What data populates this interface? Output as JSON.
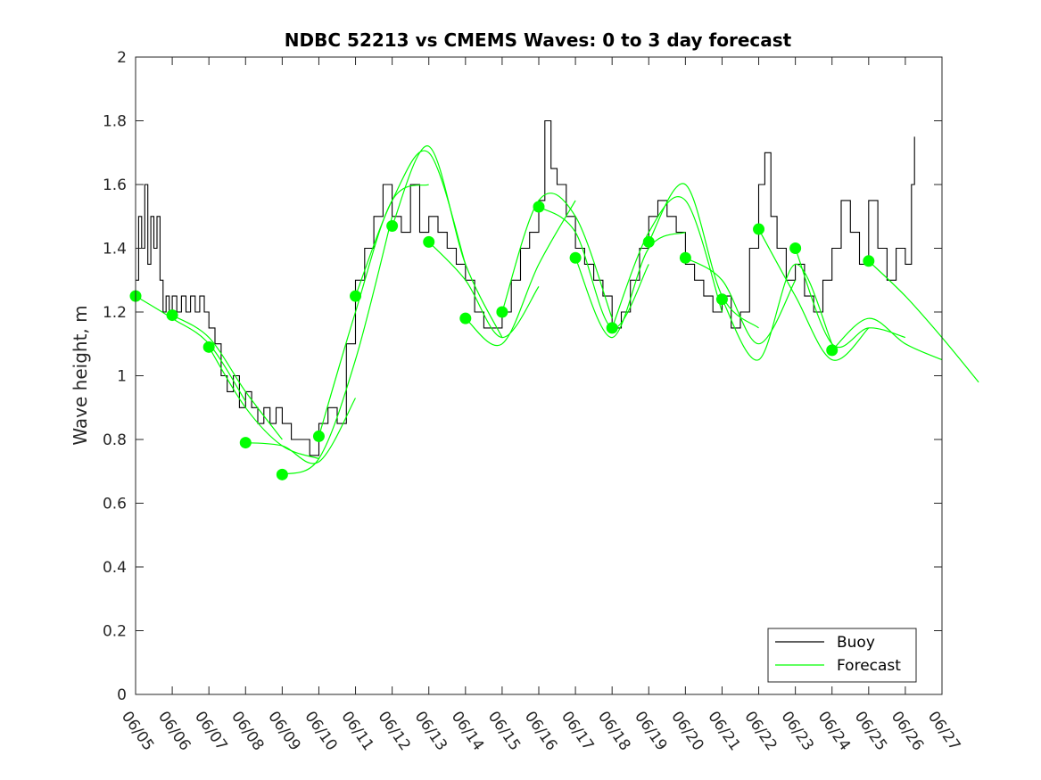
{
  "chart_data": {
    "type": "line",
    "title": "NDBC 52213 vs CMEMS Waves: 0 to 3 day forecast",
    "xlabel": "",
    "ylabel": "Wave height, m",
    "xlim": [
      "06/05",
      "06/27"
    ],
    "ylim": [
      0,
      2
    ],
    "x_tick_labels": [
      "06/05",
      "06/06",
      "06/07",
      "06/08",
      "06/09",
      "06/10",
      "06/11",
      "06/12",
      "06/13",
      "06/14",
      "06/15",
      "06/16",
      "06/17",
      "06/18",
      "06/19",
      "06/20",
      "06/21",
      "06/22",
      "06/23",
      "06/24",
      "06/25",
      "06/26",
      "06/27"
    ],
    "y_ticks": [
      0,
      0.2,
      0.4,
      0.6,
      0.8,
      1,
      1.2,
      1.4,
      1.6,
      1.8,
      2
    ],
    "y_tick_labels": [
      "0",
      "0.2",
      "0.4",
      "0.6",
      "0.8",
      "1",
      "1.2",
      "1.4",
      "1.6",
      "1.8",
      "2"
    ],
    "grid": false,
    "legend_position": "bottom-right",
    "buoy": {
      "name": "Buoy",
      "color": "#000000",
      "points": [
        [
          "06/05 00:00",
          1.3
        ],
        [
          "06/05 02:00",
          1.5
        ],
        [
          "06/05 04:00",
          1.4
        ],
        [
          "06/05 06:00",
          1.6
        ],
        [
          "06/05 08:00",
          1.35
        ],
        [
          "06/05 10:00",
          1.5
        ],
        [
          "06/05 12:00",
          1.4
        ],
        [
          "06/05 14:00",
          1.5
        ],
        [
          "06/05 16:00",
          1.3
        ],
        [
          "06/05 18:00",
          1.2
        ],
        [
          "06/05 20:00",
          1.25
        ],
        [
          "06/05 22:00",
          1.2
        ],
        [
          "06/06 00:00",
          1.25
        ],
        [
          "06/06 03:00",
          1.2
        ],
        [
          "06/06 06:00",
          1.25
        ],
        [
          "06/06 09:00",
          1.2
        ],
        [
          "06/06 12:00",
          1.25
        ],
        [
          "06/06 15:00",
          1.2
        ],
        [
          "06/06 18:00",
          1.25
        ],
        [
          "06/06 21:00",
          1.2
        ],
        [
          "06/07 00:00",
          1.15
        ],
        [
          "06/07 04:00",
          1.1
        ],
        [
          "06/07 08:00",
          1.0
        ],
        [
          "06/07 12:00",
          0.95
        ],
        [
          "06/07 16:00",
          1.0
        ],
        [
          "06/07 20:00",
          0.9
        ],
        [
          "06/08 00:00",
          0.95
        ],
        [
          "06/08 04:00",
          0.9
        ],
        [
          "06/08 08:00",
          0.85
        ],
        [
          "06/08 12:00",
          0.9
        ],
        [
          "06/08 16:00",
          0.85
        ],
        [
          "06/08 20:00",
          0.9
        ],
        [
          "06/09 00:00",
          0.85
        ],
        [
          "06/09 06:00",
          0.8
        ],
        [
          "06/09 12:00",
          0.8
        ],
        [
          "06/09 18:00",
          0.75
        ],
        [
          "06/10 00:00",
          0.85
        ],
        [
          "06/10 06:00",
          0.9
        ],
        [
          "06/10 12:00",
          0.85
        ],
        [
          "06/10 18:00",
          1.1
        ],
        [
          "06/11 00:00",
          1.3
        ],
        [
          "06/11 06:00",
          1.4
        ],
        [
          "06/11 12:00",
          1.5
        ],
        [
          "06/11 18:00",
          1.6
        ],
        [
          "06/12 00:00",
          1.5
        ],
        [
          "06/12 06:00",
          1.45
        ],
        [
          "06/12 12:00",
          1.6
        ],
        [
          "06/12 18:00",
          1.45
        ],
        [
          "06/13 00:00",
          1.5
        ],
        [
          "06/13 06:00",
          1.45
        ],
        [
          "06/13 12:00",
          1.4
        ],
        [
          "06/13 18:00",
          1.35
        ],
        [
          "06/14 00:00",
          1.3
        ],
        [
          "06/14 06:00",
          1.2
        ],
        [
          "06/14 12:00",
          1.15
        ],
        [
          "06/14 18:00",
          1.15
        ],
        [
          "06/15 00:00",
          1.2
        ],
        [
          "06/15 06:00",
          1.3
        ],
        [
          "06/15 12:00",
          1.4
        ],
        [
          "06/15 18:00",
          1.45
        ],
        [
          "06/16 00:00",
          1.55
        ],
        [
          "06/16 04:00",
          1.8
        ],
        [
          "06/16 08:00",
          1.65
        ],
        [
          "06/16 12:00",
          1.6
        ],
        [
          "06/16 18:00",
          1.5
        ],
        [
          "06/17 00:00",
          1.4
        ],
        [
          "06/17 06:00",
          1.35
        ],
        [
          "06/17 12:00",
          1.3
        ],
        [
          "06/17 18:00",
          1.25
        ],
        [
          "06/18 00:00",
          1.15
        ],
        [
          "06/18 06:00",
          1.2
        ],
        [
          "06/18 12:00",
          1.3
        ],
        [
          "06/18 18:00",
          1.4
        ],
        [
          "06/19 00:00",
          1.5
        ],
        [
          "06/19 06:00",
          1.55
        ],
        [
          "06/19 12:00",
          1.5
        ],
        [
          "06/19 18:00",
          1.45
        ],
        [
          "06/20 00:00",
          1.35
        ],
        [
          "06/20 06:00",
          1.3
        ],
        [
          "06/20 12:00",
          1.25
        ],
        [
          "06/20 18:00",
          1.2
        ],
        [
          "06/21 00:00",
          1.25
        ],
        [
          "06/21 06:00",
          1.15
        ],
        [
          "06/21 12:00",
          1.2
        ],
        [
          "06/21 18:00",
          1.4
        ],
        [
          "06/22 00:00",
          1.6
        ],
        [
          "06/22 04:00",
          1.7
        ],
        [
          "06/22 08:00",
          1.5
        ],
        [
          "06/22 12:00",
          1.4
        ],
        [
          "06/22 18:00",
          1.3
        ],
        [
          "06/23 00:00",
          1.35
        ],
        [
          "06/23 06:00",
          1.25
        ],
        [
          "06/23 12:00",
          1.2
        ],
        [
          "06/23 18:00",
          1.3
        ],
        [
          "06/24 00:00",
          1.4
        ],
        [
          "06/24 06:00",
          1.55
        ],
        [
          "06/24 12:00",
          1.45
        ],
        [
          "06/24 18:00",
          1.35
        ],
        [
          "06/25 00:00",
          1.55
        ],
        [
          "06/25 06:00",
          1.4
        ],
        [
          "06/25 12:00",
          1.3
        ],
        [
          "06/25 18:00",
          1.4
        ],
        [
          "06/26 00:00",
          1.35
        ],
        [
          "06/26 04:00",
          1.6
        ],
        [
          "06/26 06:00",
          1.75
        ]
      ]
    },
    "forecast": {
      "name": "Forecast",
      "color": "#00ff00",
      "init_markers": [
        [
          "06/05",
          1.25
        ],
        [
          "06/06",
          1.19
        ],
        [
          "06/07",
          1.09
        ],
        [
          "06/08",
          0.79
        ],
        [
          "06/09",
          0.69
        ],
        [
          "06/10",
          0.81
        ],
        [
          "06/11",
          1.25
        ],
        [
          "06/12",
          1.47
        ],
        [
          "06/13",
          1.42
        ],
        [
          "06/14",
          1.18
        ],
        [
          "06/15",
          1.2
        ],
        [
          "06/16",
          1.53
        ],
        [
          "06/17",
          1.37
        ],
        [
          "06/18",
          1.15
        ],
        [
          "06/19",
          1.42
        ],
        [
          "06/20",
          1.37
        ],
        [
          "06/21",
          1.24
        ],
        [
          "06/22",
          1.46
        ],
        [
          "06/23",
          1.4
        ],
        [
          "06/24",
          1.08
        ],
        [
          "06/25",
          1.36
        ]
      ],
      "runs": [
        {
          "init": "06/05",
          "values": [
            1.25,
            1.18,
            1.1,
            0.92
          ]
        },
        {
          "init": "06/06",
          "values": [
            1.19,
            1.12,
            0.95,
            0.8
          ]
        },
        {
          "init": "06/07",
          "values": [
            1.09,
            0.9,
            0.78,
            0.74
          ]
        },
        {
          "init": "06/08",
          "values": [
            0.79,
            0.78,
            0.73,
            0.93
          ]
        },
        {
          "init": "06/09",
          "values": [
            0.69,
            0.74,
            1.05,
            1.5
          ]
        },
        {
          "init": "06/10",
          "values": [
            0.81,
            1.2,
            1.55,
            1.6
          ]
        },
        {
          "init": "06/11",
          "values": [
            1.25,
            1.55,
            1.7,
            1.35
          ]
        },
        {
          "init": "06/12",
          "values": [
            1.47,
            1.72,
            1.35,
            1.12
          ]
        },
        {
          "init": "06/13",
          "values": [
            1.42,
            1.3,
            1.12,
            1.28
          ]
        },
        {
          "init": "06/14",
          "values": [
            1.18,
            1.1,
            1.35,
            1.55
          ]
        },
        {
          "init": "06/15",
          "values": [
            1.2,
            1.55,
            1.5,
            1.18
          ]
        },
        {
          "init": "06/16",
          "values": [
            1.53,
            1.45,
            1.15,
            1.35
          ]
        },
        {
          "init": "06/17",
          "values": [
            1.37,
            1.12,
            1.4,
            1.45
          ]
        },
        {
          "init": "06/18",
          "values": [
            1.15,
            1.45,
            1.55,
            1.2
          ]
        },
        {
          "init": "06/19",
          "values": [
            1.42,
            1.6,
            1.25,
            1.15
          ]
        },
        {
          "init": "06/20",
          "values": [
            1.37,
            1.3,
            1.1,
            1.3
          ]
        },
        {
          "init": "06/21",
          "values": [
            1.24,
            1.05,
            1.35,
            1.1
          ]
        },
        {
          "init": "06/22",
          "values": [
            1.46,
            1.25,
            1.05,
            1.15
          ]
        },
        {
          "init": "06/23",
          "values": [
            1.4,
            1.1,
            1.15,
            1.12
          ]
        },
        {
          "init": "06/24",
          "values": [
            1.08,
            1.18,
            1.1,
            1.05
          ]
        },
        {
          "init": "06/25",
          "values": [
            1.36,
            1.25,
            1.12,
            0.98
          ]
        }
      ]
    }
  }
}
